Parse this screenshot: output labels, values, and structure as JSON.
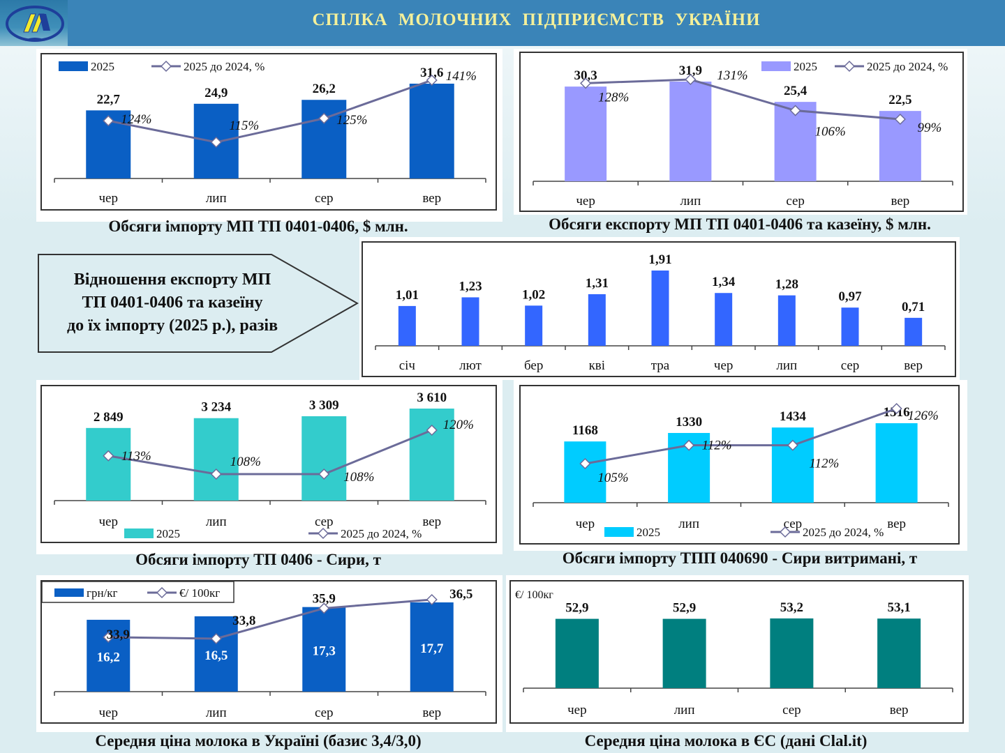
{
  "header": {
    "title": "СПІЛКА  МОЛОЧНИХ  ПІДПРИЄМСТВ  УКРАЇНИ",
    "logo_icon": "dairy-union-logo"
  },
  "colors": {
    "header_bg": "#3a84b8",
    "title_text": "#f4f09a",
    "import_bar": "#0a5fc4",
    "export_bar": "#9999ff",
    "ratio_bar": "#3366ff",
    "cheese_bar": "#33cccc",
    "aged_cheese_bar": "#00ccff",
    "ua_price_bar": "#0a5fc4",
    "eu_price_bar": "#007f7f",
    "line": "#6b6b99"
  },
  "ratio_callout": {
    "lines": [
      "Відношення експорту МП",
      "ТП 0401-0406 та казеїну",
      "до їх імпорту (2025 р.), разів"
    ]
  },
  "chart_data": [
    {
      "id": "import",
      "type": "bar",
      "caption": "Обсяги імпорту МП ТП 0401-0406, $ млн.",
      "categories": [
        "чер",
        "лип",
        "сер",
        "вер"
      ],
      "series": [
        {
          "name": "2025",
          "values": [
            22.7,
            24.9,
            26.2,
            31.6
          ],
          "labels": [
            "22,7",
            "24,9",
            "26,2",
            "31,6"
          ]
        },
        {
          "name": "2025 до 2024, %",
          "type": "line",
          "values": [
            124,
            115,
            125,
            141
          ],
          "labels": [
            "124%",
            "115%",
            "125%",
            "141%"
          ]
        }
      ],
      "legend": [
        "2025",
        "2025 до 2024, %"
      ],
      "legend_position": "top-left"
    },
    {
      "id": "export",
      "type": "bar",
      "caption": "Обсяги експорту МП ТП 0401-0406 та казеїну, $ млн.",
      "categories": [
        "чер",
        "лип",
        "сер",
        "вер"
      ],
      "series": [
        {
          "name": "2025",
          "values": [
            30.3,
            31.9,
            25.4,
            22.5
          ],
          "labels": [
            "30,3",
            "31,9",
            "25,4",
            "22,5"
          ]
        },
        {
          "name": "2025 до 2024, %",
          "type": "line",
          "values": [
            128,
            131,
            106,
            99
          ],
          "labels": [
            "128%",
            "131%",
            "106%",
            "99%"
          ]
        }
      ],
      "legend": [
        "2025",
        "2025 до 2024, %"
      ],
      "legend_position": "top-right"
    },
    {
      "id": "ratio",
      "type": "bar",
      "caption": "",
      "categories": [
        "січ",
        "лют",
        "бер",
        "кві",
        "тра",
        "чер",
        "лип",
        "сер",
        "вер"
      ],
      "series": [
        {
          "name": "ratio",
          "values": [
            1.01,
            1.23,
            1.02,
            1.31,
            1.91,
            1.34,
            1.28,
            0.97,
            0.71
          ],
          "labels": [
            "1,01",
            "1,23",
            "1,02",
            "1,31",
            "1,91",
            "1,34",
            "1,28",
            "0,97",
            "0,71"
          ]
        }
      ]
    },
    {
      "id": "cheese",
      "type": "bar",
      "caption": "Обсяги імпорту ТП 0406 - Сири, т",
      "categories": [
        "чер",
        "лип",
        "сер",
        "вер"
      ],
      "series": [
        {
          "name": "2025",
          "values": [
            2849,
            3234,
            3309,
            3610
          ],
          "labels": [
            "2 849",
            "3 234",
            "3 309",
            "3 610"
          ]
        },
        {
          "name": "2025 до 2024, %",
          "type": "line",
          "values": [
            113,
            108,
            108,
            120
          ],
          "labels": [
            "113%",
            "108%",
            "108%",
            "120%"
          ]
        }
      ],
      "legend": [
        "2025",
        "2025 до 2024, %"
      ],
      "legend_position": "bottom"
    },
    {
      "id": "aged_cheese",
      "type": "bar",
      "caption": "Обсяги імпорту ТПП 040690 - Сири витримані, т",
      "categories": [
        "чер",
        "лип",
        "сер",
        "вер"
      ],
      "series": [
        {
          "name": "2025",
          "values": [
            1168,
            1330,
            1434,
            1516
          ],
          "labels": [
            "1168",
            "1330",
            "1434",
            "1516"
          ]
        },
        {
          "name": "2025 до 2024, %",
          "type": "line",
          "values": [
            105,
            112,
            112,
            126
          ],
          "labels": [
            "105%",
            "112%",
            "112%",
            "126%"
          ]
        }
      ],
      "legend": [
        "2025",
        "2025 до 2024, %"
      ],
      "legend_position": "bottom"
    },
    {
      "id": "ua_price",
      "type": "bar",
      "caption": "Середня ціна молока в Україні (базис 3,4/3,0)",
      "categories": [
        "чер",
        "лип",
        "сер",
        "вер"
      ],
      "series": [
        {
          "name": "грн/кг",
          "values": [
            16.2,
            16.5,
            17.3,
            17.7
          ],
          "labels": [
            "16,2",
            "16,5",
            "17,3",
            "17,7"
          ]
        },
        {
          "name": "€/ 100кг",
          "type": "line",
          "values": [
            33.9,
            33.8,
            35.9,
            36.5
          ],
          "labels": [
            "33,9",
            "33,8",
            "35,9",
            "36,5"
          ]
        }
      ],
      "legend": [
        "грн/кг",
        "€/ 100кг"
      ],
      "legend_position": "top-left"
    },
    {
      "id": "eu_price",
      "type": "bar",
      "caption": "Середня ціна молока в ЄС (дані Clal.it)",
      "unit_label": "€/ 100кг",
      "categories": [
        "чер",
        "лип",
        "сер",
        "вер"
      ],
      "series": [
        {
          "name": "€/ 100кг",
          "values": [
            52.9,
            52.9,
            53.2,
            53.1
          ],
          "labels": [
            "52,9",
            "52,9",
            "53,2",
            "53,1"
          ]
        }
      ]
    }
  ]
}
